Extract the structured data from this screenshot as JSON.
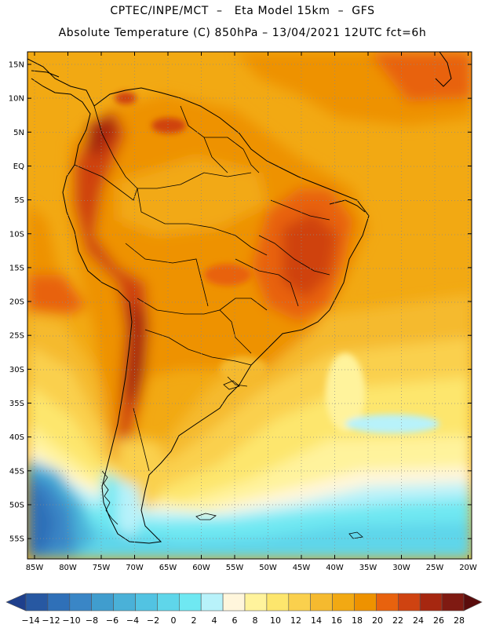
{
  "header": {
    "line1": "CPTEC/INPE/MCT  –   Eta Model 15km  –  GFS",
    "line2": "Absolute Temperature (C) 850hPa – 13/04/2021 12UTC fct=6h"
  },
  "map": {
    "lat_labels": [
      "15N",
      "10N",
      "5N",
      "EQ",
      "5S",
      "10S",
      "15S",
      "20S",
      "25S",
      "30S",
      "35S",
      "40S",
      "45S",
      "50S",
      "55S"
    ],
    "lon_labels": [
      "85W",
      "80W",
      "75W",
      "70W",
      "65W",
      "60W",
      "55W",
      "50W",
      "45W",
      "40W",
      "35W",
      "30W",
      "25W",
      "20W"
    ]
  },
  "legend": {
    "labels": [
      "−14",
      "−12",
      "−10",
      "−8",
      "−6",
      "−4",
      "−2",
      "0",
      "2",
      "4",
      "6",
      "8",
      "10",
      "12",
      "14",
      "16",
      "18",
      "20",
      "22",
      "24",
      "26",
      "28"
    ],
    "colors": [
      "#1e3f8c",
      "#2758a2",
      "#2f70b8",
      "#3a86c6",
      "#409dce",
      "#4ab1d8",
      "#52c3e2",
      "#5fd6ea",
      "#6fe8f2",
      "#b8f2fa",
      "#fff6dc",
      "#fff39c",
      "#fde66d",
      "#fad04d",
      "#f5ba2f",
      "#f2a913",
      "#ee9200",
      "#e8620e",
      "#cf4311",
      "#a62710",
      "#7f1a12",
      "#5a0c0c"
    ]
  }
}
